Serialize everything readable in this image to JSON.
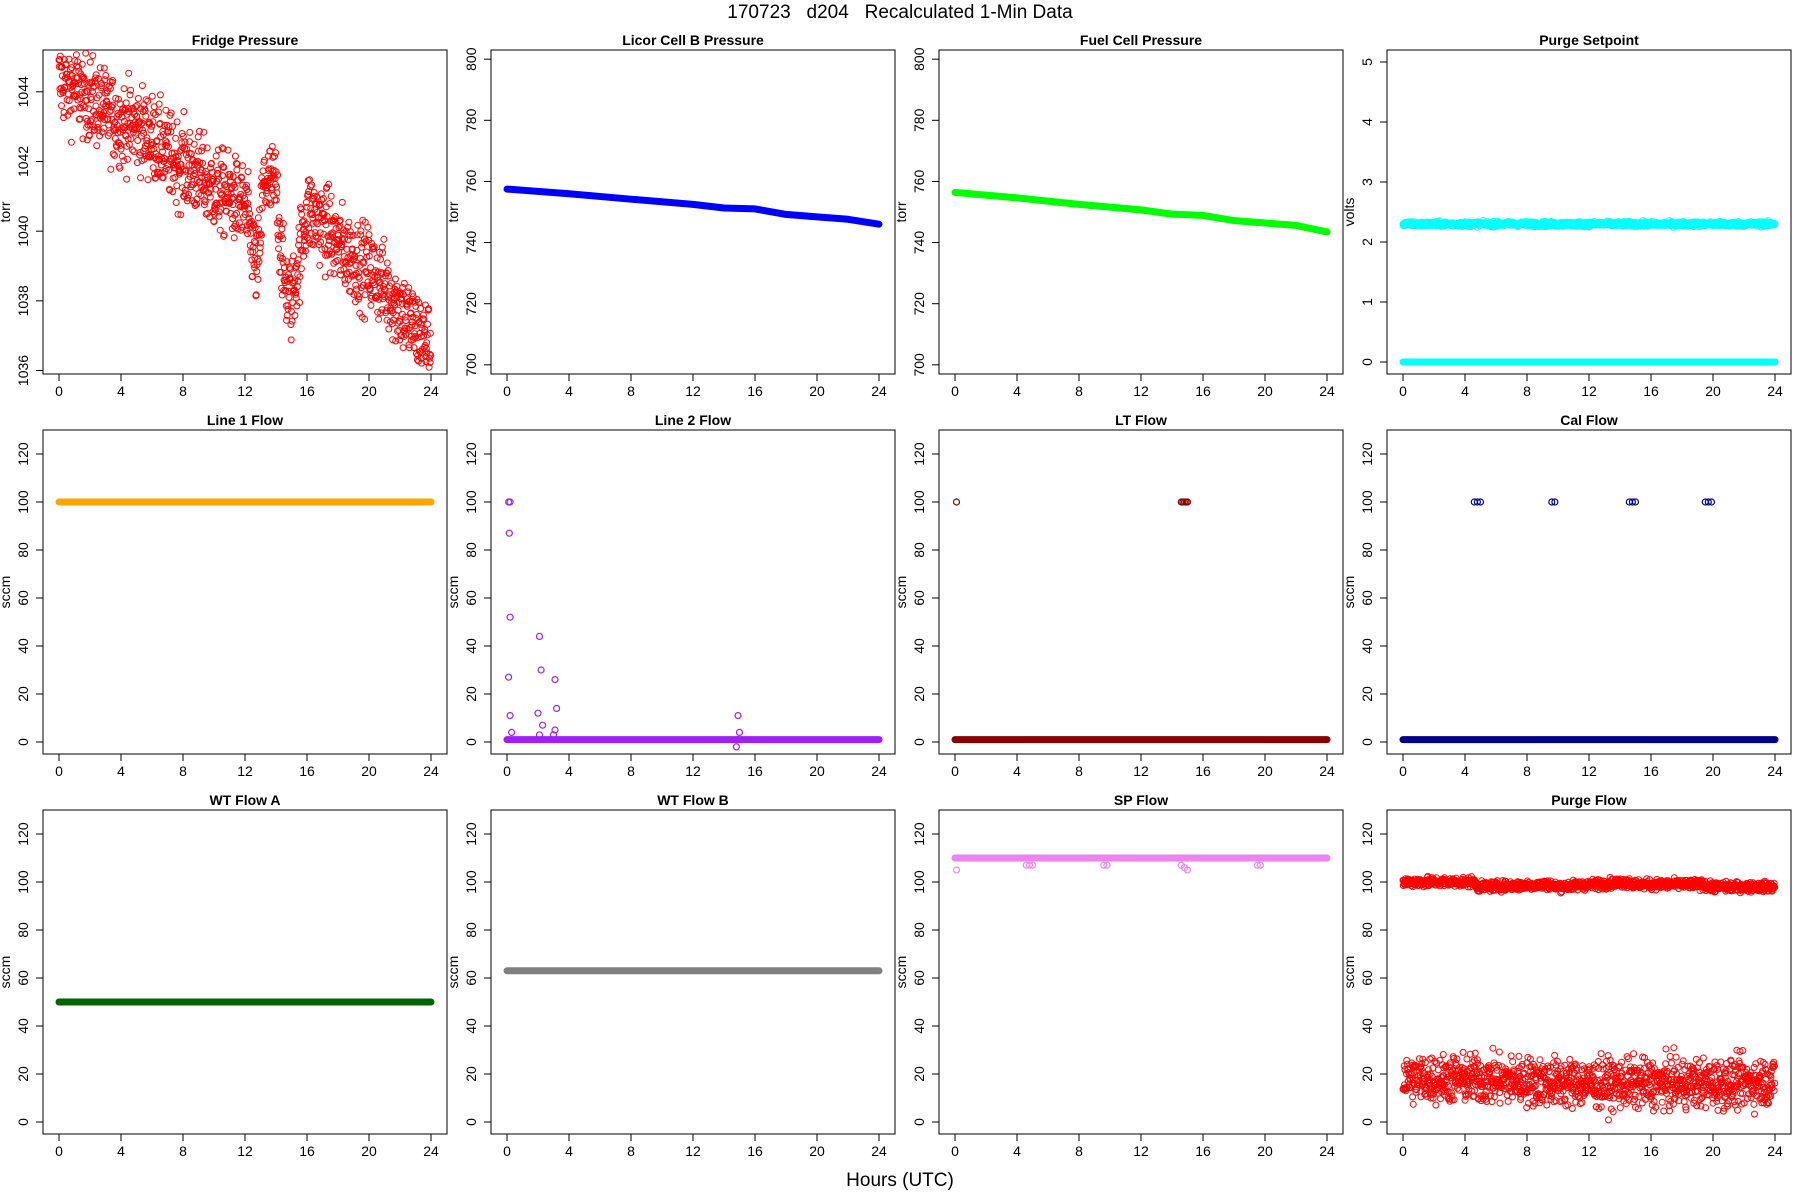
{
  "figure": {
    "title": "170723   d204   Recalculated 1-Min Data",
    "xlabel": "Hours (UTC)"
  },
  "chart_data": [
    {
      "type": "scatter",
      "title": "Fridge Pressure",
      "ylabel": "torr",
      "color": "#ff0000",
      "marker": "open-circle",
      "xlim": [
        0,
        24
      ],
      "ylim": [
        1035.9,
        1045.2
      ],
      "yticks": [
        1036,
        1038,
        1040,
        1042,
        1044
      ],
      "xticks": [
        0,
        4,
        8,
        12,
        16,
        20,
        24
      ],
      "series": [
        {
          "x": [
            0,
            1,
            2,
            3,
            4,
            5,
            6,
            7,
            8,
            9,
            10,
            11,
            12,
            12.8,
            13.2,
            14,
            14.5,
            15,
            16,
            17,
            18,
            19,
            20,
            21,
            22,
            23,
            24
          ],
          "y": [
            1044.3,
            1044.1,
            1043.8,
            1043.4,
            1043.1,
            1043.0,
            1042.7,
            1042.2,
            1041.9,
            1041.6,
            1041.2,
            1041.0,
            1040.7,
            1038.8,
            1041.4,
            1041.3,
            1038.6,
            1038.0,
            1040.6,
            1040.2,
            1039.6,
            1039.2,
            1038.9,
            1038.4,
            1037.8,
            1037.2,
            1036.7
          ],
          "spread": 0.6
        }
      ]
    },
    {
      "type": "scatter",
      "title": "Licor Cell B Pressure",
      "ylabel": "torr",
      "color": "#0000ff",
      "marker": "filled-line",
      "xlim": [
        0,
        24
      ],
      "ylim": [
        697,
        803
      ],
      "yticks": [
        700,
        720,
        740,
        760,
        780,
        800
      ],
      "xticks": [
        0,
        4,
        8,
        12,
        16,
        20,
        24
      ],
      "series": [
        {
          "x": [
            0,
            4,
            8,
            12,
            14,
            16,
            18,
            20,
            22,
            24
          ],
          "y": [
            757.5,
            756,
            754.2,
            752.5,
            751.3,
            751,
            749.2,
            748.4,
            747.6,
            746
          ],
          "spread": 0
        }
      ]
    },
    {
      "type": "scatter",
      "title": "Fuel Cell Pressure",
      "ylabel": "torr",
      "color": "#00ff00",
      "marker": "filled-line",
      "xlim": [
        0,
        24
      ],
      "ylim": [
        697,
        803
      ],
      "yticks": [
        700,
        720,
        740,
        760,
        780,
        800
      ],
      "xticks": [
        0,
        4,
        8,
        12,
        16,
        20,
        24
      ],
      "series": [
        {
          "x": [
            0,
            4,
            8,
            12,
            14,
            16,
            18,
            20,
            22,
            24
          ],
          "y": [
            756.4,
            754.6,
            752.5,
            750.7,
            749.3,
            748.9,
            747.2,
            746.4,
            745.6,
            743.5
          ],
          "spread": 0
        }
      ]
    },
    {
      "type": "scatter",
      "title": "Purge Setpoint",
      "ylabel": "volts",
      "color": "#00ffff",
      "marker": "filled-line",
      "xlim": [
        0,
        24
      ],
      "ylim": [
        -0.2,
        5.2
      ],
      "yticks": [
        0,
        1,
        2,
        3,
        4,
        5
      ],
      "xticks": [
        0,
        4,
        8,
        12,
        16,
        20,
        24
      ],
      "series": [
        {
          "x": [
            0,
            24
          ],
          "y": [
            0,
            0
          ],
          "spread": 0
        },
        {
          "x": [
            4.5,
            4.9,
            9.5,
            9.8,
            14.5,
            14.9,
            19.5,
            19.8
          ],
          "y": [
            2.3,
            2.3,
            2.3,
            2.3,
            2.3,
            2.3,
            2.3,
            2.3
          ],
          "spread": 0.02,
          "marker": "open-circle"
        }
      ]
    },
    {
      "type": "scatter",
      "title": "Line 1 Flow",
      "ylabel": "sccm",
      "color": "#ffa500",
      "marker": "filled-line",
      "xlim": [
        0,
        24
      ],
      "ylim": [
        -5,
        130
      ],
      "yticks": [
        0,
        20,
        40,
        60,
        80,
        100,
        120
      ],
      "xticks": [
        0,
        4,
        8,
        12,
        16,
        20,
        24
      ],
      "series": [
        {
          "x": [
            0,
            24
          ],
          "y": [
            100,
            100
          ],
          "spread": 0
        }
      ]
    },
    {
      "type": "scatter",
      "title": "Line 2 Flow",
      "ylabel": "sccm",
      "color": "#a020f0",
      "marker": "filled-line",
      "xlim": [
        0,
        24
      ],
      "ylim": [
        -5,
        130
      ],
      "yticks": [
        0,
        20,
        40,
        60,
        80,
        100,
        120
      ],
      "xticks": [
        0,
        4,
        8,
        12,
        16,
        20,
        24
      ],
      "series": [
        {
          "x": [
            0,
            24
          ],
          "y": [
            1,
            1
          ],
          "spread": 0
        },
        {
          "x": [
            0.1,
            0.2,
            0.15,
            0.2,
            0.1,
            0.2,
            0.3,
            2.1,
            2.2,
            2.0,
            2.3,
            2.1,
            3.1,
            3.2,
            3.1,
            3.0,
            14.9,
            15.0,
            14.8,
            14.9
          ],
          "y": [
            100,
            100,
            87,
            52,
            27,
            11,
            4,
            44,
            30,
            12,
            7,
            3,
            26,
            14,
            5,
            3,
            11,
            4,
            -2,
            1
          ],
          "spread": 0,
          "marker": "open-circle"
        }
      ]
    },
    {
      "type": "scatter",
      "title": "LT Flow",
      "ylabel": "sccm",
      "color": "#8b0000",
      "marker": "filled-line",
      "xlim": [
        0,
        24
      ],
      "ylim": [
        -5,
        130
      ],
      "yticks": [
        0,
        20,
        40,
        60,
        80,
        100,
        120
      ],
      "xticks": [
        0,
        4,
        8,
        12,
        16,
        20,
        24
      ],
      "series": [
        {
          "x": [
            0,
            24
          ],
          "y": [
            1,
            1
          ],
          "spread": 0
        },
        {
          "x": [
            0.1,
            14.6,
            14.7,
            14.8,
            14.9,
            15.0
          ],
          "y": [
            100,
            100,
            100,
            100,
            100,
            100
          ],
          "spread": 0,
          "marker": "open-circle"
        }
      ]
    },
    {
      "type": "scatter",
      "title": "Cal Flow",
      "ylabel": "sccm",
      "color": "#00008b",
      "marker": "filled-line",
      "xlim": [
        0,
        24
      ],
      "ylim": [
        -5,
        130
      ],
      "yticks": [
        0,
        20,
        40,
        60,
        80,
        100,
        120
      ],
      "xticks": [
        0,
        4,
        8,
        12,
        16,
        20,
        24
      ],
      "series": [
        {
          "x": [
            0,
            24
          ],
          "y": [
            1,
            1
          ],
          "spread": 0
        },
        {
          "x": [
            4.6,
            4.8,
            5.0,
            9.6,
            9.8,
            14.6,
            14.8,
            15.0,
            19.5,
            19.7,
            19.9
          ],
          "y": [
            100,
            100,
            100,
            100,
            100,
            100,
            100,
            100,
            100,
            100,
            100
          ],
          "spread": 0,
          "marker": "open-circle"
        }
      ]
    },
    {
      "type": "scatter",
      "title": "WT Flow A",
      "ylabel": "sccm",
      "color": "#006400",
      "marker": "filled-line",
      "xlim": [
        0,
        24
      ],
      "ylim": [
        -5,
        130
      ],
      "yticks": [
        0,
        20,
        40,
        60,
        80,
        100,
        120
      ],
      "xticks": [
        0,
        4,
        8,
        12,
        16,
        20,
        24
      ],
      "series": [
        {
          "x": [
            0,
            24
          ],
          "y": [
            50,
            50
          ],
          "spread": 0
        }
      ]
    },
    {
      "type": "scatter",
      "title": "WT Flow B",
      "ylabel": "sccm",
      "color": "#808080",
      "marker": "filled-line",
      "xlim": [
        0,
        24
      ],
      "ylim": [
        -5,
        130
      ],
      "yticks": [
        0,
        20,
        40,
        60,
        80,
        100,
        120
      ],
      "xticks": [
        0,
        4,
        8,
        12,
        16,
        20,
        24
      ],
      "series": [
        {
          "x": [
            0,
            24
          ],
          "y": [
            63,
            63
          ],
          "spread": 0
        }
      ]
    },
    {
      "type": "scatter",
      "title": "SP Flow",
      "ylabel": "sccm",
      "color": "#ee82ee",
      "marker": "filled-line",
      "xlim": [
        0,
        24
      ],
      "ylim": [
        -5,
        130
      ],
      "yticks": [
        0,
        20,
        40,
        60,
        80,
        100,
        120
      ],
      "xticks": [
        0,
        4,
        8,
        12,
        16,
        20,
        24
      ],
      "series": [
        {
          "x": [
            0,
            24
          ],
          "y": [
            110,
            110
          ],
          "spread": 0
        },
        {
          "x": [
            0.1,
            4.6,
            4.8,
            5.0,
            9.6,
            9.8,
            14.6,
            14.8,
            15.0,
            19.5,
            19.7
          ],
          "y": [
            105,
            107,
            107,
            107,
            107,
            107,
            107,
            106,
            105,
            107,
            107
          ],
          "spread": 0,
          "marker": "open-circle"
        }
      ]
    },
    {
      "type": "scatter",
      "title": "Purge Flow",
      "ylabel": "sccm",
      "color": "#ff0000",
      "marker": "open-circle",
      "xlim": [
        0,
        24
      ],
      "ylim": [
        -5,
        130
      ],
      "yticks": [
        0,
        20,
        40,
        60,
        80,
        100,
        120
      ],
      "xticks": [
        0,
        4,
        8,
        12,
        16,
        20,
        24
      ],
      "series": [
        {
          "x": [
            0,
            4,
            8,
            12,
            16,
            20,
            24
          ],
          "y": [
            18,
            18,
            17,
            16,
            16,
            16,
            17
          ],
          "spread": 5
        },
        {
          "x": [
            4.6,
            4.7,
            4.8,
            9.6,
            9.7,
            14.6,
            14.8,
            19.5,
            19.6
          ],
          "y": [
            100,
            99,
            98,
            99,
            98,
            100,
            99,
            99,
            98
          ],
          "spread": 1
        }
      ]
    }
  ]
}
